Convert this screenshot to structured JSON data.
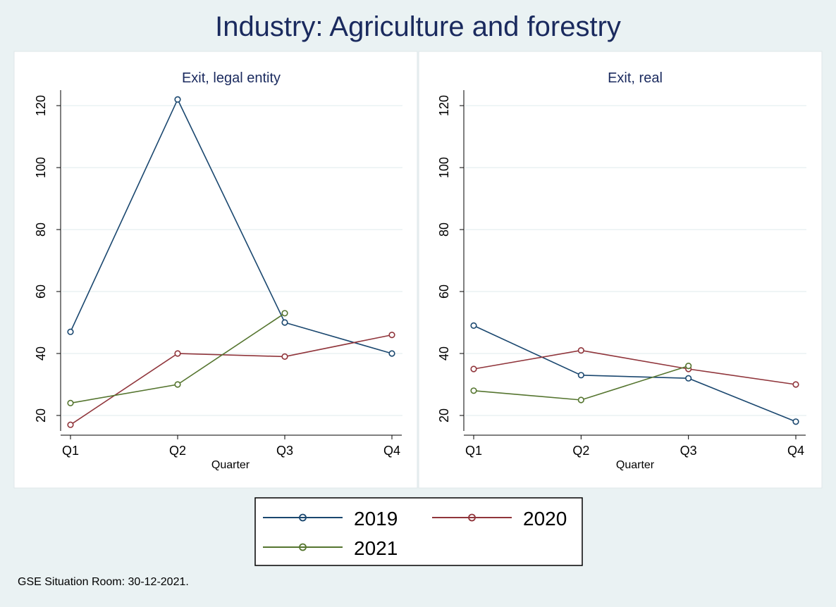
{
  "title": "Industry: Agriculture and forestry",
  "footnote": "GSE Situation Room: 30-12-2021.",
  "colors": {
    "2019": "#1a476f",
    "2020": "#90353b",
    "2021": "#55752f"
  },
  "legend": {
    "placement": "bottom",
    "entries": [
      "2019",
      "2020",
      "2021"
    ]
  },
  "chart_data": [
    {
      "type": "line",
      "title": "Exit, legal entity",
      "xlabel": "Quarter",
      "ylabel": "",
      "categories": [
        "Q1",
        "Q2",
        "Q3",
        "Q4"
      ],
      "ylim": [
        15,
        125
      ],
      "yticks": [
        20,
        40,
        60,
        80,
        100,
        120
      ],
      "grid": true,
      "series": [
        {
          "name": "2019",
          "values": [
            47,
            122,
            50,
            40
          ]
        },
        {
          "name": "2020",
          "values": [
            17,
            40,
            39,
            46
          ]
        },
        {
          "name": "2021",
          "values": [
            24,
            30,
            53,
            null
          ]
        }
      ]
    },
    {
      "type": "line",
      "title": "Exit, real",
      "xlabel": "Quarter",
      "ylabel": "",
      "categories": [
        "Q1",
        "Q2",
        "Q3",
        "Q4"
      ],
      "ylim": [
        15,
        125
      ],
      "yticks": [
        20,
        40,
        60,
        80,
        100,
        120
      ],
      "grid": true,
      "series": [
        {
          "name": "2019",
          "values": [
            49,
            33,
            32,
            18
          ]
        },
        {
          "name": "2020",
          "values": [
            35,
            41,
            35,
            30
          ]
        },
        {
          "name": "2021",
          "values": [
            28,
            25,
            36,
            null
          ]
        }
      ]
    }
  ]
}
